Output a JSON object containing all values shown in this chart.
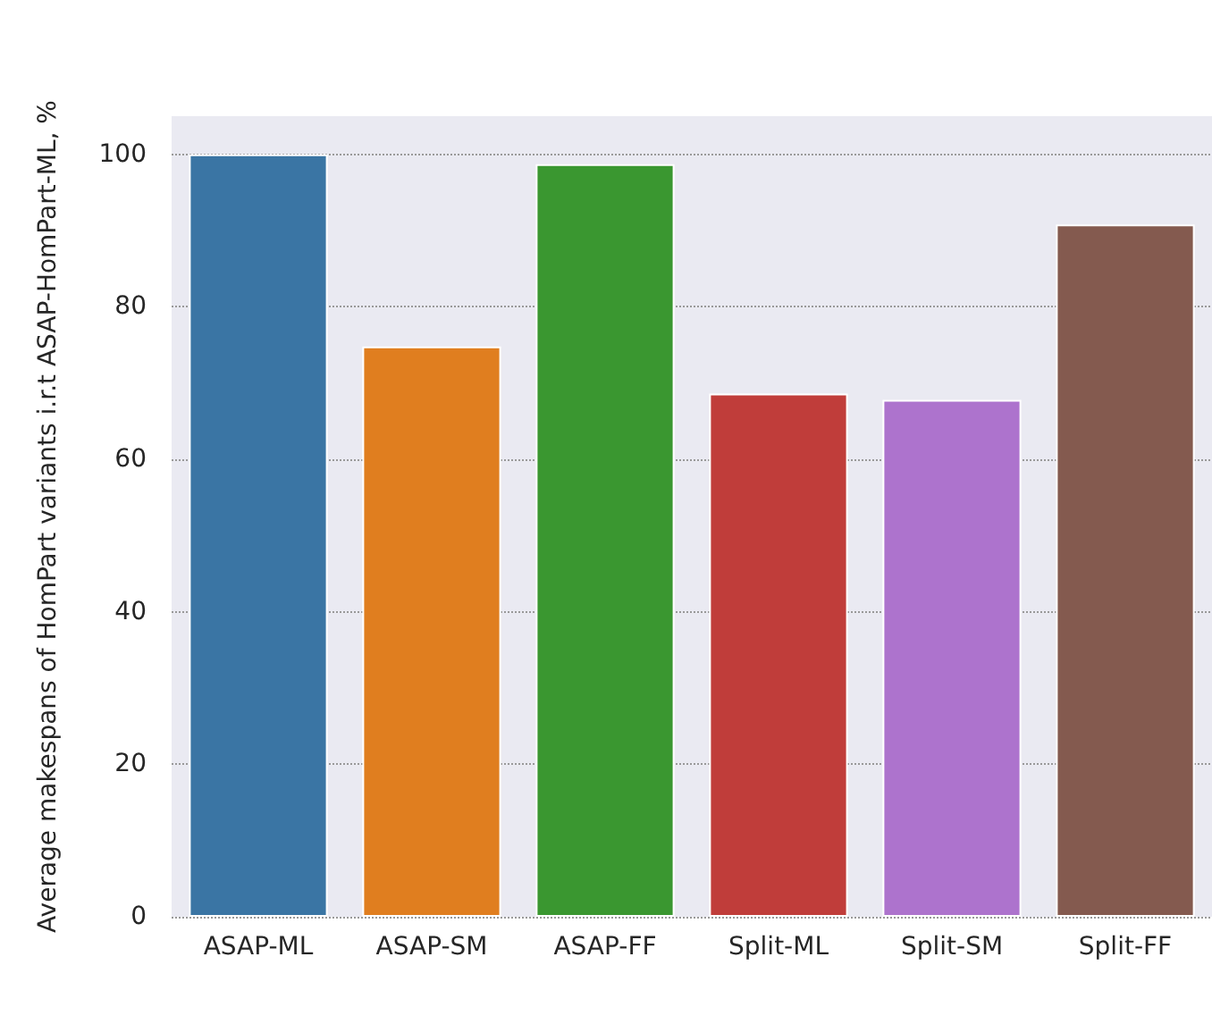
{
  "chart_data": {
    "type": "bar",
    "ylabel": "Average makespans of HomPart variants i.r.t ASAP-HomPart-ML, %",
    "categories": [
      "ASAP-ML",
      "ASAP-SM",
      "ASAP-FF",
      "Split-ML",
      "Split-SM",
      "Split-FF"
    ],
    "values": [
      100,
      74.8,
      98.7,
      68.6,
      67.8,
      90.8
    ],
    "colors": [
      "#3a75a4",
      "#e07e1f",
      "#3a9730",
      "#c03d3a",
      "#ad73cd",
      "#845a4f"
    ],
    "ylim": [
      0,
      105
    ],
    "yticks": [
      0,
      20,
      40,
      60,
      80,
      100
    ],
    "grid": "y"
  }
}
